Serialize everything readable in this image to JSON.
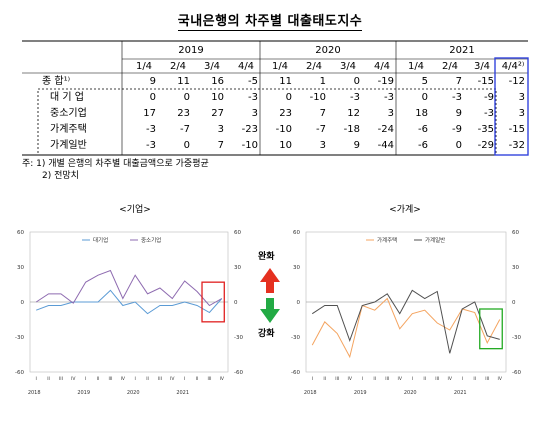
{
  "title": "국내은행의 차주별 대출태도지수",
  "table": {
    "years": [
      "2019",
      "2020",
      "2021"
    ],
    "quarters": [
      "1/4",
      "2/4",
      "3/4",
      "4/4",
      "1/4",
      "2/4",
      "3/4",
      "4/4",
      "1/4",
      "2/4",
      "3/4",
      "4/4²⁾"
    ],
    "rows": [
      {
        "label": "종 합¹⁾",
        "values": [
          "9",
          "11",
          "16",
          "-5",
          "11",
          "1",
          "0",
          "-19",
          "5",
          "7",
          "-15",
          "-12"
        ]
      },
      {
        "label": "대 기 업",
        "values": [
          "0",
          "0",
          "10",
          "-3",
          "0",
          "-10",
          "-3",
          "-3",
          "0",
          "-3",
          "-9",
          "3"
        ]
      },
      {
        "label": "중소기업",
        "values": [
          "17",
          "23",
          "27",
          "3",
          "23",
          "7",
          "12",
          "3",
          "18",
          "9",
          "-3",
          "3"
        ]
      },
      {
        "label": "가계주택",
        "values": [
          "-3",
          "-7",
          "3",
          "-23",
          "-10",
          "-7",
          "-18",
          "-24",
          "-6",
          "-9",
          "-35",
          "-15"
        ]
      },
      {
        "label": "가계일반",
        "values": [
          "-3",
          "0",
          "7",
          "-10",
          "10",
          "3",
          "9",
          "-44",
          "-6",
          "0",
          "-29",
          "-32"
        ]
      }
    ]
  },
  "notes": {
    "note1": "주: 1) 개별 은행의 차주별 대출금액으로 가중평균",
    "note2": "2) 전망치"
  },
  "side_labels": {
    "ease": "완화",
    "tighten": "강화"
  },
  "colors": {
    "corp_large": "#5b9bd5",
    "corp_sme": "#8e6bb0",
    "house_mortgage": "#f4a460",
    "house_general": "#505050",
    "highlight_red": "#e02020",
    "highlight_green": "#22aa22",
    "highlight_blue": "#3344dd",
    "arrow_red": "#e53020",
    "arrow_green": "#22aa44"
  },
  "chart_data": [
    {
      "type": "line",
      "title": "<기업>",
      "x": [
        "I",
        "II",
        "III",
        "IV",
        "I",
        "II",
        "III",
        "IV",
        "I",
        "II",
        "III",
        "IV",
        "I",
        "II",
        "III",
        "IV"
      ],
      "x_year_labels": [
        "2018",
        "2019",
        "2020",
        "2021"
      ],
      "ylim": [
        -60,
        60
      ],
      "yticks": [
        "60",
        "30",
        "0",
        "-30",
        "-60"
      ],
      "series": [
        {
          "name": "대기업",
          "values": [
            -7,
            -3,
            -3,
            0,
            0,
            0,
            10,
            -3,
            0,
            -10,
            -3,
            -3,
            0,
            -3,
            -9,
            3
          ]
        },
        {
          "name": "중소기업",
          "values": [
            0,
            7,
            7,
            -1,
            17,
            23,
            27,
            3,
            23,
            7,
            12,
            3,
            18,
            9,
            -3,
            3
          ]
        }
      ]
    },
    {
      "type": "line",
      "title": "<가계>",
      "x": [
        "I",
        "II",
        "III",
        "IV",
        "I",
        "II",
        "III",
        "IV",
        "I",
        "II",
        "III",
        "IV",
        "I",
        "II",
        "III",
        "IV"
      ],
      "x_year_labels": [
        "2018",
        "2019",
        "2020",
        "2021"
      ],
      "ylim": [
        -60,
        60
      ],
      "yticks": [
        "60",
        "30",
        "0",
        "-30",
        "-60"
      ],
      "series": [
        {
          "name": "가계주택",
          "values": [
            -37,
            -17,
            -27,
            -47,
            -3,
            -7,
            3,
            -23,
            -10,
            -7,
            -18,
            -24,
            -6,
            -9,
            -35,
            -15
          ]
        },
        {
          "name": "가계일반",
          "values": [
            -10,
            -3,
            -3,
            -33,
            -3,
            0,
            7,
            -10,
            10,
            3,
            9,
            -44,
            -6,
            0,
            -29,
            -32
          ]
        }
      ]
    }
  ]
}
